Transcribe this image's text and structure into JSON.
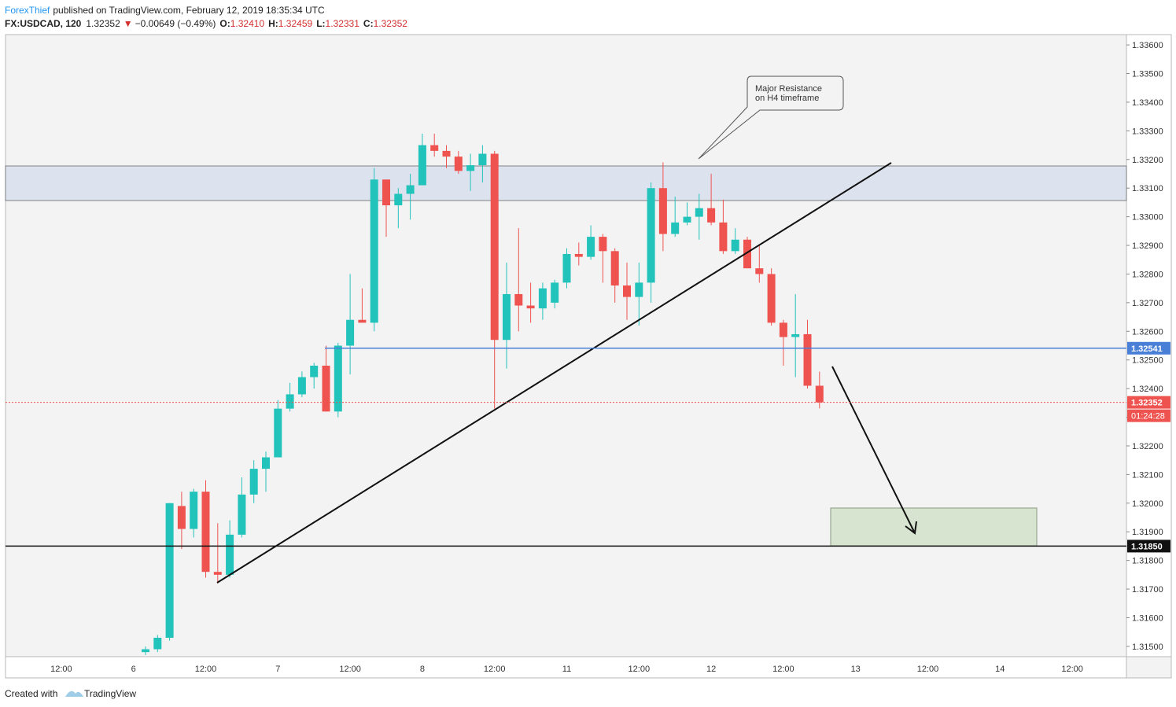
{
  "header": {
    "author": "ForexThief",
    "published": "published on TradingView.com, February 12, 2019 18:35:34 UTC"
  },
  "chart_data": {
    "type": "candlestick",
    "quote": {
      "symbol": "FX:USDCAD, 120",
      "price": "1.32352",
      "arrow": "▼",
      "change": "−0.00649 (−0.49%)",
      "stats": [
        {
          "key": "O:",
          "value": "1.32410"
        },
        {
          "key": "H:",
          "value": "1.32459"
        },
        {
          "key": "L:",
          "value": "1.32331"
        },
        {
          "key": "C:",
          "value": "1.32352"
        }
      ]
    },
    "up_color": "#22c3bb",
    "down_color": "#ef5350",
    "open": [
      1.3148,
      1.3149,
      1.3153,
      1.3199,
      1.3191,
      1.3204,
      1.3176,
      1.3175,
      1.3189,
      1.3203,
      1.3212,
      1.3216,
      1.3233,
      1.3238,
      1.3244,
      1.3248,
      1.3232,
      1.3255,
      1.3264,
      1.3263,
      1.3313,
      1.3304,
      1.3308,
      1.3311,
      1.3325,
      1.3323,
      1.3321,
      1.3316,
      1.3318,
      1.3322,
      1.3257,
      1.3273,
      1.3269,
      1.3268,
      1.327,
      1.3277,
      1.3287,
      1.3286,
      1.3293,
      1.3288,
      1.3276,
      1.3272,
      1.3277,
      1.331,
      1.3294,
      1.3298,
      1.33,
      1.3303,
      1.3298,
      1.3288,
      1.3292,
      1.3282,
      1.328,
      1.3263,
      1.3258,
      1.3259,
      1.3241
    ],
    "high": [
      1.315,
      1.3154,
      1.32,
      1.3204,
      1.3205,
      1.3208,
      1.3193,
      1.3194,
      1.3209,
      1.3215,
      1.3218,
      1.3236,
      1.3242,
      1.3246,
      1.3249,
      1.3255,
      1.3256,
      1.328,
      1.3275,
      1.3317,
      1.3313,
      1.331,
      1.3315,
      1.3329,
      1.3329,
      1.3325,
      1.3323,
      1.3322,
      1.3325,
      1.3323,
      1.3284,
      1.3296,
      1.3277,
      1.3277,
      1.3278,
      1.3289,
      1.3291,
      1.3297,
      1.3294,
      1.3289,
      1.3284,
      1.3284,
      1.3312,
      1.3319,
      1.3307,
      1.3305,
      1.3308,
      1.3315,
      1.3306,
      1.3296,
      1.3293,
      1.329,
      1.3282,
      1.3264,
      1.3273,
      1.3264,
      1.32459
    ],
    "low": [
      1.3147,
      1.3148,
      1.3152,
      1.3184,
      1.3188,
      1.3174,
      1.3172,
      1.3174,
      1.3188,
      1.32,
      1.3204,
      1.3216,
      1.3232,
      1.3237,
      1.324,
      1.3232,
      1.323,
      1.3245,
      1.3263,
      1.326,
      1.3293,
      1.3296,
      1.3299,
      1.3311,
      1.3321,
      1.3317,
      1.3315,
      1.3309,
      1.3312,
      1.3233,
      1.3247,
      1.326,
      1.3263,
      1.3264,
      1.3268,
      1.3275,
      1.3283,
      1.3285,
      1.3277,
      1.327,
      1.3264,
      1.3262,
      1.327,
      1.3288,
      1.3293,
      1.3297,
      1.3292,
      1.3297,
      1.3287,
      1.3287,
      1.3282,
      1.3277,
      1.3262,
      1.3248,
      1.3244,
      1.324,
      1.32331
    ],
    "close": [
      1.3149,
      1.3153,
      1.32,
      1.3191,
      1.3204,
      1.3176,
      1.3175,
      1.3189,
      1.3203,
      1.3212,
      1.3216,
      1.3233,
      1.3238,
      1.3244,
      1.3248,
      1.3232,
      1.3255,
      1.3264,
      1.3263,
      1.3313,
      1.3304,
      1.3308,
      1.3311,
      1.3325,
      1.3323,
      1.3321,
      1.3316,
      1.3318,
      1.3322,
      1.3257,
      1.3273,
      1.3269,
      1.3268,
      1.3275,
      1.3277,
      1.3287,
      1.3286,
      1.3293,
      1.3288,
      1.3276,
      1.3272,
      1.3277,
      1.331,
      1.3294,
      1.3298,
      1.33,
      1.3303,
      1.3298,
      1.3288,
      1.3292,
      1.3282,
      1.328,
      1.3263,
      1.3258,
      1.3259,
      1.3241,
      1.32352
    ],
    "xtick_labels": [
      "12:00",
      "6",
      "12:00",
      "7",
      "12:00",
      "8",
      "12:00",
      "11",
      "12:00",
      "12",
      "12:00",
      "13",
      "12:00",
      "14",
      "12:00"
    ],
    "ylim": [
      1.31464,
      1.33636
    ],
    "yticks": [
      {
        "value": 1.315,
        "label": "1.31500"
      },
      {
        "value": 1.316,
        "label": "1.31600"
      },
      {
        "value": 1.317,
        "label": "1.31700"
      },
      {
        "value": 1.318,
        "label": "1.31800"
      },
      {
        "value": 1.319,
        "label": "1.31900"
      },
      {
        "value": 1.32,
        "label": "1.32000"
      },
      {
        "value": 1.321,
        "label": "1.32100"
      },
      {
        "value": 1.322,
        "label": "1.32200"
      },
      {
        "value": 1.323,
        "label": "1.32300"
      },
      {
        "value": 1.324,
        "label": "1.32400"
      },
      {
        "value": 1.325,
        "label": "1.32500"
      },
      {
        "value": 1.326,
        "label": "1.32600"
      },
      {
        "value": 1.327,
        "label": "1.32700"
      },
      {
        "value": 1.328,
        "label": "1.32800"
      },
      {
        "value": 1.329,
        "label": "1.32900"
      },
      {
        "value": 1.33,
        "label": "1.33000"
      },
      {
        "value": 1.331,
        "label": "1.33100"
      },
      {
        "value": 1.332,
        "label": "1.33200"
      },
      {
        "value": 1.333,
        "label": "1.33300"
      },
      {
        "value": 1.334,
        "label": "1.33400"
      },
      {
        "value": 1.335,
        "label": "1.33500"
      },
      {
        "value": 1.336,
        "label": "1.33600"
      }
    ],
    "levels": [
      {
        "value": 1.32541,
        "color": "#4a7fd8"
      },
      {
        "value": 1.32352,
        "color": "#ef5350"
      },
      {
        "value": 1.3185,
        "label": "1.31850",
        "color": "#111111"
      }
    ],
    "countdown": "01:24:28",
    "annotation": [
      "Major Resistance",
      "on H4 timeframe"
    ]
  },
  "footer": {
    "created": "Created with",
    "brand": "TradingView"
  }
}
